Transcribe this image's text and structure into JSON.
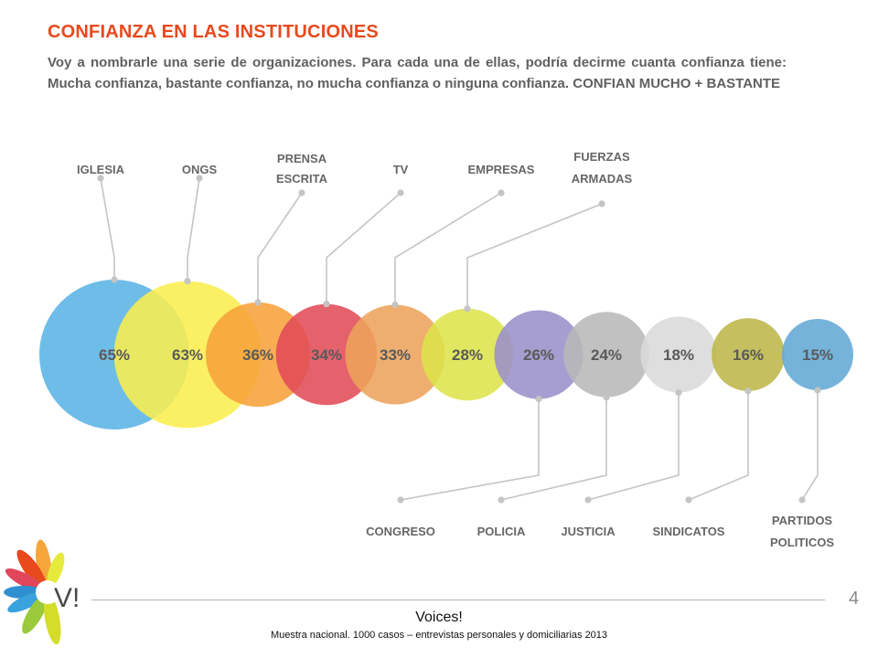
{
  "header": {
    "title": "CONFIANZA EN LAS INSTITUCIONES",
    "subtitle": "Voy a nombrarle una serie de organizaciones. Para cada una de ellas, podría decirme cuanta confianza tiene: Mucha confianza, bastante confianza, no mucha confianza o ninguna confianza. CONFIAN MUCHO + BASTANTE"
  },
  "chart_data": {
    "type": "bubble",
    "title": "CONFIANZA EN LAS INSTITUCIONES",
    "categories": [
      "IGLESIA",
      "ONGS",
      "PRENSA ESCRITA",
      "TV",
      "EMPRESAS",
      "FUERZAS ARMADAS",
      "CONGRESO",
      "POLICIA",
      "JUSTICIA",
      "SINDICATOS",
      "PARTIDOS POLITICOS"
    ],
    "values": [
      65,
      63,
      36,
      34,
      33,
      28,
      26,
      24,
      18,
      16,
      15
    ],
    "value_labels": [
      "65%",
      "63%",
      "36%",
      "34%",
      "33%",
      "28%",
      "26%",
      "24%",
      "18%",
      "16%",
      "15%"
    ],
    "label_lines": [
      [
        "IGLESIA"
      ],
      [
        "ONGS"
      ],
      [
        "PRENSA",
        "ESCRITA"
      ],
      [
        "TV"
      ],
      [
        "EMPRESAS"
      ],
      [
        "FUERZAS",
        "ARMADAS"
      ],
      [
        "CONGRESO"
      ],
      [
        "POLICIA"
      ],
      [
        "JUSTICIA"
      ],
      [
        "SINDICATOS"
      ],
      [
        "PARTIDOS",
        "POLITICOS"
      ]
    ],
    "label_side": [
      "top",
      "top",
      "top",
      "top",
      "top",
      "top",
      "bottom",
      "bottom",
      "bottom",
      "bottom",
      "bottom"
    ],
    "colors": [
      "#5ab4e5",
      "#fbee4f",
      "#f7a23a",
      "#e14b58",
      "#eda35b",
      "#dde44a",
      "#9a8fca",
      "#b8b8b8",
      "#d9d9d9",
      "#bdb64a",
      "#62a8d6"
    ]
  },
  "footer": {
    "page_number": "4",
    "brand": "Voices!",
    "source": "Muestra nacional. 1000 casos – entrevistas personales y domiciliarias 2013",
    "logo_text": "V!"
  }
}
